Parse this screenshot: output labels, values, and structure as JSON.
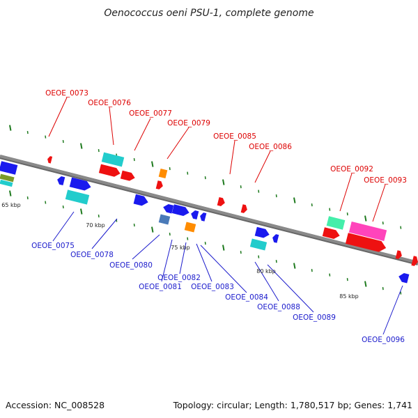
{
  "title": "Oenococcus oeni PSU-1, complete genome",
  "footer": {
    "accession": "Accession: NC_008528",
    "summary": "Topology: circular; Length: 1,780,517 bp; Genes: 1,741"
  },
  "colors": {
    "label_top": "#dd0000",
    "label_bottom": "#1a1acc",
    "backbone": "#8a8a8a",
    "tick": "#1e7a1e"
  },
  "kbp_markers": [
    "65 kbp",
    "70 kbp",
    "75 kbp",
    "80 kbp",
    "85 kbp"
  ],
  "genes_top": [
    "OEOE_0073",
    "OEOE_0076",
    "OEOE_0077",
    "OEOE_0079",
    "OEOE_0085",
    "OEOE_0086",
    "OEOE_0092",
    "OEOE_0093"
  ],
  "genes_bottom": [
    "OEOE_0075",
    "OEOE_0078",
    "OEOE_0080",
    "OEOE_0081",
    "OEOE_0082",
    "OEOE_0083",
    "OEOE_0084",
    "OEOE_0088",
    "OEOE_0089",
    "OEOE_0096"
  ]
}
